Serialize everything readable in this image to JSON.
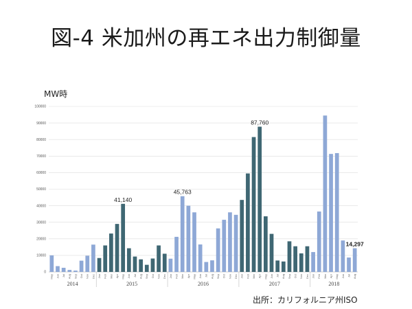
{
  "title": "図-4 米加州の再エネ出力制御量",
  "source": "出所：カリフォルニア州ISO",
  "chart_data": {
    "type": "bar",
    "ylabel": "MW時",
    "ylim": [
      0,
      100000
    ],
    "yticks": [
      0,
      10000,
      20000,
      30000,
      40000,
      50000,
      60000,
      70000,
      80000,
      90000,
      100000
    ],
    "grid": true,
    "legend": "none",
    "colors": {
      "light": "#8ea8d6",
      "dark": "#3f6773"
    },
    "years": [
      "2014",
      "2015",
      "2016",
      "2017",
      "2018"
    ],
    "categories": [
      "May",
      "Jun",
      "Jul",
      "Aug",
      "Sep",
      "Oct",
      "Nov",
      "Dec",
      "Jan",
      "Feb",
      "Mar",
      "Apr",
      "May",
      "Jun",
      "Jul",
      "Aug",
      "Sep",
      "Oct",
      "Nov",
      "Dec",
      "Jan",
      "Feb",
      "Mar",
      "Apr",
      "May",
      "Jun",
      "Jul",
      "Aug",
      "Sep",
      "Oct",
      "Nov",
      "Dec",
      "Jan",
      "Feb",
      "Mar",
      "Apr",
      "May",
      "Jun",
      "Jul",
      "Aug",
      "Sep",
      "Oct",
      "Nov",
      "Dec",
      "Jan",
      "Feb",
      "Mar",
      "Apr",
      "May",
      "Jun",
      "Jul",
      "Aug"
    ],
    "category_years": [
      "2014",
      "2014",
      "2014",
      "2014",
      "2014",
      "2014",
      "2014",
      "2014",
      "2015",
      "2015",
      "2015",
      "2015",
      "2015",
      "2015",
      "2015",
      "2015",
      "2015",
      "2015",
      "2015",
      "2015",
      "2016",
      "2016",
      "2016",
      "2016",
      "2016",
      "2016",
      "2016",
      "2016",
      "2016",
      "2016",
      "2016",
      "2016",
      "2017",
      "2017",
      "2017",
      "2017",
      "2017",
      "2017",
      "2017",
      "2017",
      "2017",
      "2017",
      "2017",
      "2017",
      "2018",
      "2018",
      "2018",
      "2018",
      "2018",
      "2018",
      "2018",
      "2018"
    ],
    "values": [
      10000,
      3500,
      2500,
      1200,
      800,
      6800,
      9800,
      16500,
      8400,
      16000,
      23200,
      29000,
      41140,
      14300,
      9300,
      7600,
      4300,
      8100,
      16000,
      11000,
      8000,
      21200,
      45763,
      40000,
      36000,
      16600,
      6000,
      7000,
      26300,
      31500,
      36000,
      34500,
      43500,
      59500,
      81500,
      87760,
      33600,
      23000,
      6900,
      6300,
      18500,
      15500,
      11200,
      15500,
      12000,
      36500,
      94500,
      71300,
      71800,
      19000,
      8700,
      14297
    ],
    "bar_color": [
      "light",
      "light",
      "light",
      "light",
      "light",
      "light",
      "light",
      "light",
      "dark",
      "dark",
      "dark",
      "dark",
      "dark",
      "dark",
      "dark",
      "dark",
      "dark",
      "dark",
      "dark",
      "dark",
      "light",
      "light",
      "light",
      "light",
      "light",
      "light",
      "light",
      "light",
      "light",
      "light",
      "light",
      "light",
      "dark",
      "dark",
      "dark",
      "dark",
      "dark",
      "dark",
      "dark",
      "dark",
      "dark",
      "dark",
      "dark",
      "dark",
      "light",
      "light",
      "light",
      "light",
      "light",
      "light",
      "light",
      "light"
    ],
    "annotations": [
      {
        "index": 12,
        "label": "41,140",
        "bold": false
      },
      {
        "index": 22,
        "label": "45,763",
        "bold": false
      },
      {
        "index": 35,
        "label": "87,760",
        "bold": false
      },
      {
        "index": 51,
        "label": "14,297",
        "bold": true
      }
    ]
  }
}
